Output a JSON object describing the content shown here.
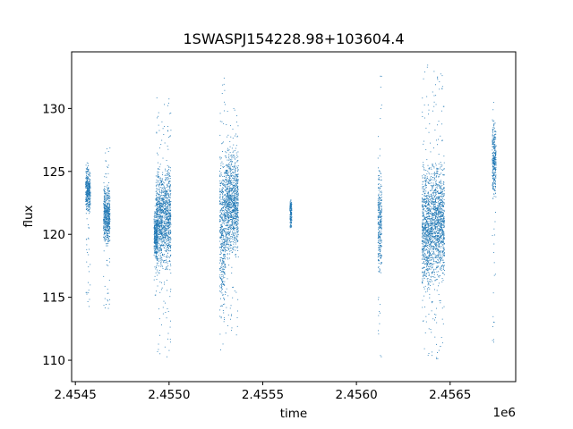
{
  "chart_data": {
    "type": "scatter",
    "title": "1SWASPJ154228.98+103604.4",
    "xlabel": "time",
    "ylabel": "flux",
    "x_offset_label": "1e6",
    "xlim": [
      2454480,
      2456850
    ],
    "ylim": [
      108.3,
      134.5
    ],
    "x_ticks": [
      2454500,
      2455000,
      2455500,
      2456000,
      2456500
    ],
    "x_tick_labels": [
      "2.4545",
      "2.4550",
      "2.4555",
      "2.4560",
      "2.4565"
    ],
    "y_ticks": [
      110,
      115,
      120,
      125,
      130
    ],
    "y_tick_labels": [
      "110",
      "115",
      "120",
      "125",
      "130"
    ],
    "grid": false,
    "marker_color": "#1f77b4",
    "clusters": [
      {
        "x_range": [
          2454555,
          2454580
        ],
        "y_core": [
          121.5,
          125.5
        ],
        "y_spread": [
          114,
          126
        ]
      },
      {
        "x_range": [
          2454650,
          2454685
        ],
        "y_core": [
          119,
          124
        ],
        "y_spread": [
          114,
          127
        ]
      },
      {
        "x_range": [
          2454920,
          2454940
        ],
        "y_core": [
          118,
          122
        ],
        "y_spread": [
          115,
          123
        ]
      },
      {
        "x_range": [
          2454930,
          2455010
        ],
        "y_core": [
          117,
          125.5
        ],
        "y_spread": [
          110,
          131
        ]
      },
      {
        "x_range": [
          2455270,
          2455300
        ],
        "y_core": [
          113,
          127
        ],
        "y_spread": [
          109.8,
          133
        ]
      },
      {
        "x_range": [
          2455300,
          2455370
        ],
        "y_core": [
          118,
          127
        ],
        "y_spread": [
          112,
          130
        ]
      },
      {
        "x_range": [
          2455645,
          2455655
        ],
        "y_core": [
          120.5,
          122.8
        ],
        "y_spread": [
          120.5,
          122.8
        ]
      },
      {
        "x_range": [
          2456115,
          2456135
        ],
        "y_core": [
          116.5,
          125.5
        ],
        "y_spread": [
          109.5,
          133
        ]
      },
      {
        "x_range": [
          2456350,
          2456400
        ],
        "y_core": [
          115,
          126
        ],
        "y_spread": [
          110,
          133.5
        ]
      },
      {
        "x_range": [
          2456400,
          2456470
        ],
        "y_core": [
          116,
          126
        ],
        "y_spread": [
          110,
          133
        ]
      },
      {
        "x_range": [
          2456725,
          2456745
        ],
        "y_core": [
          122.5,
          129.5
        ],
        "y_spread": [
          111,
          130.5
        ]
      }
    ]
  }
}
